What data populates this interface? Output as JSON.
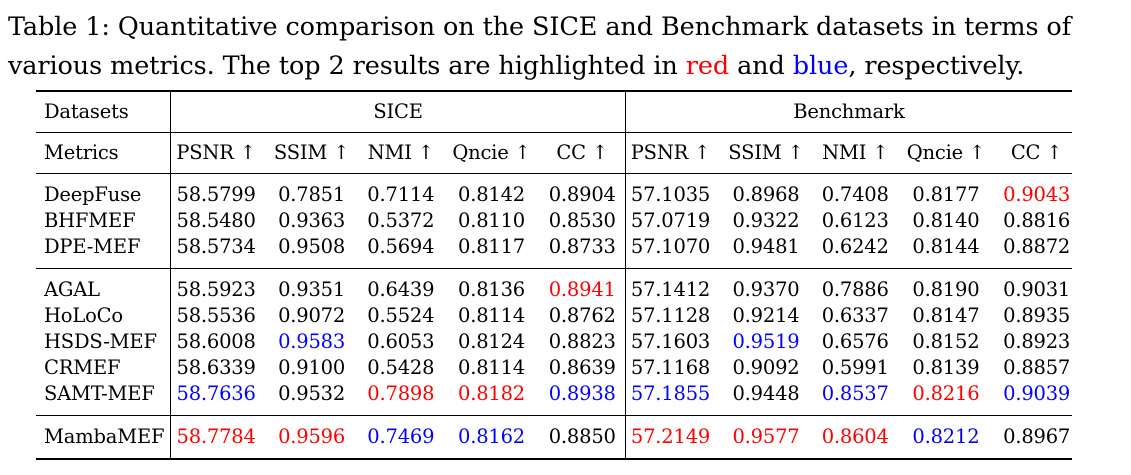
{
  "caption": {
    "prefix": "Table 1: Quantitative comparison on the SICE and Benchmark datasets in terms of various metrics. The top 2 results are highlighted in ",
    "red_word": "red",
    "middle": " and ",
    "blue_word": "blue",
    "suffix": ", respectively."
  },
  "colors": {
    "top1": "#ff0000",
    "top2": "#0000ff"
  },
  "table": {
    "datasets_label": "Datasets",
    "metrics_label": "Metrics",
    "groups": [
      "SICE",
      "Benchmark"
    ],
    "metrics": [
      "PSNR ↑",
      "SSIM ↑",
      "NMI ↑",
      "Qncie ↑",
      "CC ↑"
    ],
    "sections": [
      {
        "rows": [
          {
            "method": "DeepFuse",
            "values": [
              "58.5799",
              "0.7851",
              "0.7114",
              "0.8142",
              "0.8904",
              "57.1035",
              "0.8968",
              "0.7408",
              "0.8177",
              "0.9043"
            ],
            "marks": [
              "",
              "",
              "",
              "",
              "",
              "",
              "",
              "",
              "",
              "r"
            ]
          },
          {
            "method": "BHFMEF",
            "values": [
              "58.5480",
              "0.9363",
              "0.5372",
              "0.8110",
              "0.8530",
              "57.0719",
              "0.9322",
              "0.6123",
              "0.8140",
              "0.8816"
            ],
            "marks": [
              "",
              "",
              "",
              "",
              "",
              "",
              "",
              "",
              "",
              ""
            ]
          },
          {
            "method": "DPE-MEF",
            "values": [
              "58.5734",
              "0.9508",
              "0.5694",
              "0.8117",
              "0.8733",
              "57.1070",
              "0.9481",
              "0.6242",
              "0.8144",
              "0.8872"
            ],
            "marks": [
              "",
              "",
              "",
              "",
              "",
              "",
              "",
              "",
              "",
              ""
            ]
          }
        ]
      },
      {
        "rows": [
          {
            "method": "AGAL",
            "values": [
              "58.5923",
              "0.9351",
              "0.6439",
              "0.8136",
              "0.8941",
              "57.1412",
              "0.9370",
              "0.7886",
              "0.8190",
              "0.9031"
            ],
            "marks": [
              "",
              "",
              "",
              "",
              "r",
              "",
              "",
              "",
              "",
              ""
            ]
          },
          {
            "method": "HoLoCo",
            "values": [
              "58.5536",
              "0.9072",
              "0.5524",
              "0.8114",
              "0.8762",
              "57.1128",
              "0.9214",
              "0.6337",
              "0.8147",
              "0.8935"
            ],
            "marks": [
              "",
              "",
              "",
              "",
              "",
              "",
              "",
              "",
              "",
              ""
            ]
          },
          {
            "method": "HSDS-MEF",
            "values": [
              "58.6008",
              "0.9583",
              "0.6053",
              "0.8124",
              "0.8823",
              "57.1603",
              "0.9519",
              "0.6576",
              "0.8152",
              "0.8923"
            ],
            "marks": [
              "",
              "b",
              "",
              "",
              "",
              "",
              "b",
              "",
              "",
              ""
            ]
          },
          {
            "method": "CRMEF",
            "values": [
              "58.6339",
              "0.9100",
              "0.5428",
              "0.8114",
              "0.8639",
              "57.1168",
              "0.9092",
              "0.5991",
              "0.8139",
              "0.8857"
            ],
            "marks": [
              "",
              "",
              "",
              "",
              "",
              "",
              "",
              "",
              "",
              ""
            ]
          },
          {
            "method": "SAMT-MEF",
            "values": [
              "58.7636",
              "0.9532",
              "0.7898",
              "0.8182",
              "0.8938",
              "57.1855",
              "0.9448",
              "0.8537",
              "0.8216",
              "0.9039"
            ],
            "marks": [
              "b",
              "",
              "r",
              "r",
              "b",
              "b",
              "",
              "b",
              "r",
              "b"
            ]
          }
        ]
      },
      {
        "rows": [
          {
            "method": "MambaMEF",
            "values": [
              "58.7784",
              "0.9596",
              "0.7469",
              "0.8162",
              "0.8850",
              "57.2149",
              "0.9577",
              "0.8604",
              "0.8212",
              "0.8967"
            ],
            "marks": [
              "r",
              "r",
              "b",
              "b",
              "",
              "r",
              "r",
              "r",
              "b",
              ""
            ]
          }
        ]
      }
    ]
  }
}
